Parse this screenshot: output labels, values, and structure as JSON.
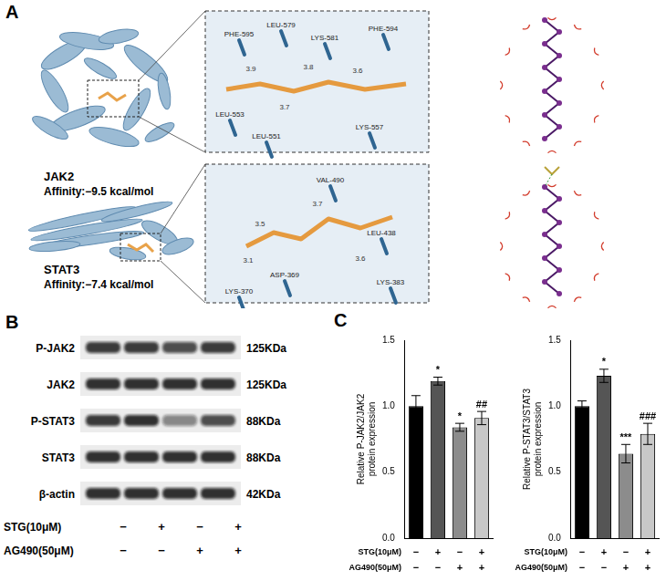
{
  "panels": {
    "A": {
      "letter": "A",
      "complexes": [
        {
          "protein": "JAK2",
          "affinity": "Affinity:−9.5 kcal/mol",
          "residues": [
            "PHE-595",
            "LEU-579",
            "LYS-581",
            "PHE-594",
            "LEU-553",
            "LEU-551",
            "LYS-557"
          ],
          "distances": [
            3.9,
            3.8,
            3.6,
            3.7
          ]
        },
        {
          "protein": "STAT3",
          "affinity": "Affinity:−7.4 kcal/mol",
          "residues": [
            "VAL-490",
            "LEU-438",
            "ASP-369",
            "LYS-370",
            "LYS-383"
          ],
          "distances": [
            3.5,
            3.7,
            3.6,
            3.1
          ]
        }
      ]
    },
    "B": {
      "letter": "B",
      "rows": [
        {
          "label": "P-JAK2",
          "size": "125KDa",
          "intensity": [
            0.95,
            0.95,
            0.85,
            0.95
          ]
        },
        {
          "label": "JAK2",
          "size": "125KDa",
          "intensity": [
            1,
            1,
            1,
            1
          ]
        },
        {
          "label": "P-STAT3",
          "size": "88KDa",
          "intensity": [
            0.95,
            1,
            0.55,
            0.85
          ]
        },
        {
          "label": "STAT3",
          "size": "88KDa",
          "intensity": [
            1,
            1,
            1,
            1
          ]
        },
        {
          "label": "β-actin",
          "size": "42KDa",
          "intensity": [
            1,
            1,
            1,
            1
          ]
        }
      ],
      "conditions": [
        {
          "name": "STG(10μM)",
          "marks": [
            "−",
            "+",
            "−",
            "+"
          ]
        },
        {
          "name": "AG490(50μM)",
          "marks": [
            "−",
            "−",
            "+",
            "+"
          ]
        }
      ]
    },
    "C": {
      "letter": "C"
    }
  },
  "chart_data": [
    {
      "type": "bar",
      "ylabel": "Relative P-JAK2/JAK2 protein expression",
      "categories": [
        null,
        null,
        null,
        null
      ],
      "values": [
        1.0,
        1.19,
        0.84,
        0.91
      ],
      "errors": [
        0.08,
        0.03,
        0.03,
        0.05
      ],
      "significance": [
        null,
        "*",
        "*",
        "##"
      ],
      "colors": [
        "#000000",
        "#555555",
        "#8c8c8c",
        "#c8c8c8"
      ],
      "ylim": [
        0,
        1.5
      ],
      "yticks": [
        {
          "value": 0,
          "label": "0.0"
        },
        {
          "value": 0.5,
          "label": "0.5"
        },
        {
          "value": 1,
          "label": "1.0"
        },
        {
          "value": 1.5,
          "label": "1.5"
        }
      ],
      "grid": false,
      "conditions": [
        {
          "name": "STG(10μM)",
          "marks": [
            "−",
            "+",
            "−",
            "+"
          ]
        },
        {
          "name": "AG490(50μM)",
          "marks": [
            "−",
            "−",
            "+",
            "+"
          ]
        }
      ]
    },
    {
      "type": "bar",
      "ylabel": "Relative P-STAT3/STAT3 protein expression",
      "categories": [
        null,
        null,
        null,
        null
      ],
      "values": [
        1.0,
        1.23,
        0.64,
        0.79
      ],
      "errors": [
        0.04,
        0.05,
        0.07,
        0.08
      ],
      "significance": [
        null,
        "*",
        "***",
        "###"
      ],
      "colors": [
        "#000000",
        "#555555",
        "#8c8c8c",
        "#c8c8c8"
      ],
      "ylim": [
        0,
        1.5
      ],
      "yticks": [
        {
          "value": 0,
          "label": "0.0"
        },
        {
          "value": 0.5,
          "label": "0.5"
        },
        {
          "value": 1,
          "label": "1.0"
        },
        {
          "value": 1.5,
          "label": "1.5"
        }
      ],
      "grid": false,
      "conditions": [
        {
          "name": "STG(10μM)",
          "marks": [
            "−",
            "+",
            "−",
            "+"
          ]
        },
        {
          "name": "AG490(50μM)",
          "marks": [
            "−",
            "−",
            "+",
            "+"
          ]
        }
      ]
    }
  ]
}
